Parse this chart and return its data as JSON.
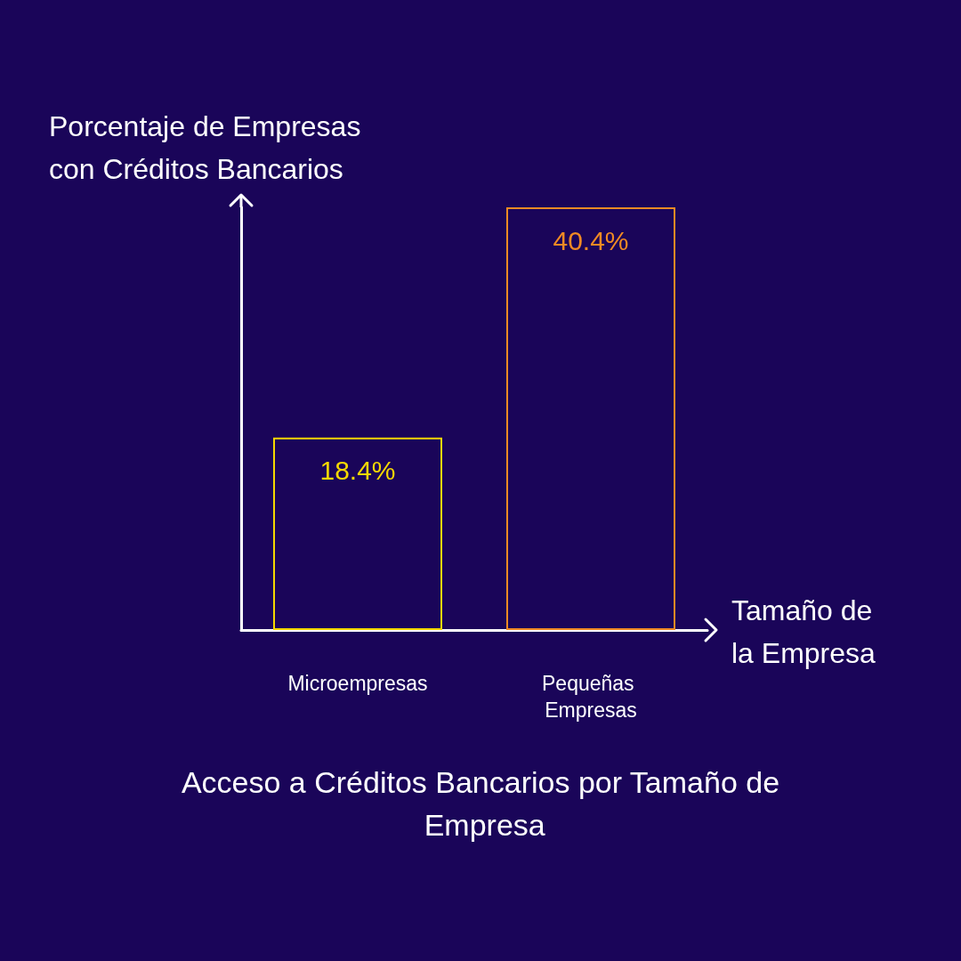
{
  "chart_data": {
    "type": "bar",
    "title": "Acceso a Créditos Bancarios por Tamaño de Empresa",
    "xlabel": "Tamaño de la Empresa",
    "ylabel": "Porcentaje de Empresas con Créditos Bancarios",
    "categories": [
      "Microempresas",
      "Pequeñas Empresas"
    ],
    "values": [
      18.4,
      40.4
    ],
    "colors": [
      "#f5d800",
      "#f08a24"
    ],
    "value_labels": [
      "18.4%",
      "40.4%"
    ],
    "tick_labels": "x",
    "grid": false
  }
}
